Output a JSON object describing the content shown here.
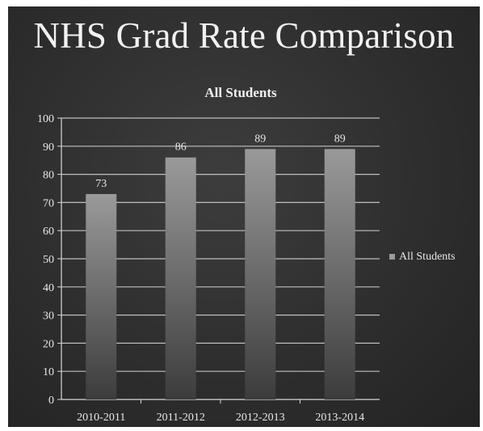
{
  "slide": {
    "title": "NHS Grad Rate Comparison"
  },
  "chart_data": {
    "type": "bar",
    "title": "All Students",
    "categories": [
      "2010-2011",
      "2011-2012",
      "2012-2013",
      "2013-2014"
    ],
    "series": [
      {
        "name": "All Students",
        "values": [
          73,
          86,
          89,
          89
        ]
      }
    ],
    "data_labels": [
      "73",
      "86",
      "89",
      "89"
    ],
    "ylim": [
      0,
      100
    ],
    "yticks": [
      0,
      10,
      20,
      30,
      40,
      50,
      60,
      70,
      80,
      90,
      100
    ],
    "grid": true,
    "legend_position": "right",
    "colors": {
      "bar_top": "#9a9a9a",
      "bar_bottom": "#3c3c3c",
      "grid": "#d8d8d8",
      "text": "#e8e8e8"
    }
  }
}
